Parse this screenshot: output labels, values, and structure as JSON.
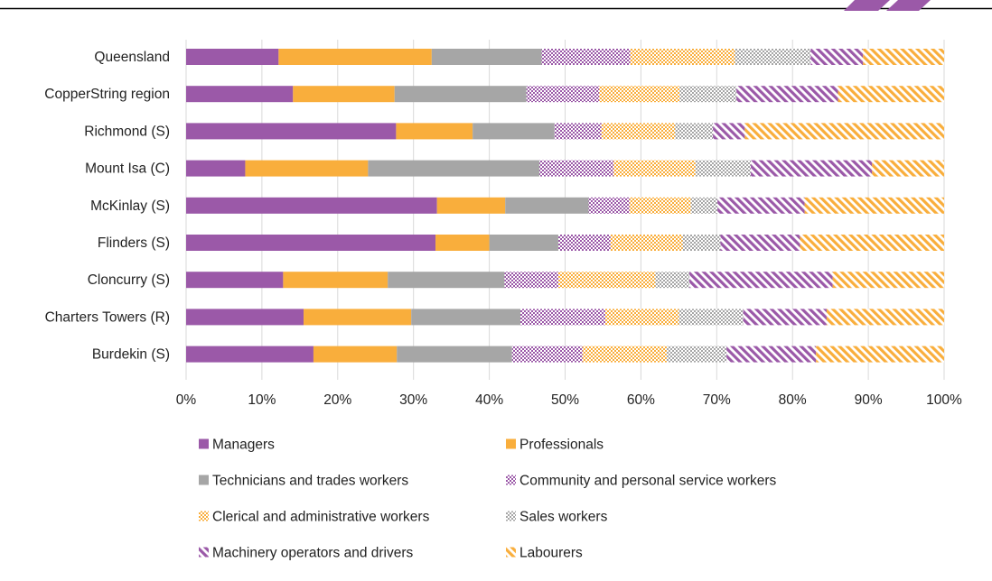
{
  "chart_data": {
    "type": "bar",
    "orientation": "horizontal",
    "stacked": "percent",
    "categories": [
      "Queensland",
      "CopperString region",
      "Richmond (S)",
      "Mount Isa (C)",
      "McKinlay (S)",
      "Flinders (S)",
      "Cloncurry (S)",
      "Charters Towers (R)",
      "Burdekin (S)"
    ],
    "xlim": [
      0,
      100
    ],
    "xticks": [
      "0%",
      "10%",
      "20%",
      "30%",
      "40%",
      "50%",
      "60%",
      "70%",
      "80%",
      "90%",
      "100%"
    ],
    "grid": "vertical",
    "legend_position": "bottom",
    "series": [
      {
        "name": "Managers",
        "color": "#9b59a8",
        "pattern": "solid",
        "values": [
          12.2,
          14.1,
          27.7,
          7.8,
          33.1,
          32.9,
          12.8,
          15.5,
          16.8
        ]
      },
      {
        "name": "Professionals",
        "color": "#f9ae3c",
        "pattern": "solid",
        "values": [
          20.2,
          13.4,
          10.1,
          16.2,
          9.0,
          7.1,
          13.8,
          14.2,
          11.0
        ]
      },
      {
        "name": "Technicians and trades workers",
        "color": "#a6a6a6",
        "pattern": "solid",
        "values": [
          14.5,
          17.4,
          10.8,
          22.6,
          11.0,
          9.1,
          15.4,
          14.4,
          15.2
        ]
      },
      {
        "name": "Community and personal service workers",
        "color": "#9b59a8",
        "pattern": "checker",
        "values": [
          11.7,
          9.6,
          6.2,
          9.8,
          5.4,
          6.9,
          7.1,
          11.2,
          9.3
        ]
      },
      {
        "name": "Clerical and administrative workers",
        "color": "#f9ae3c",
        "pattern": "checker",
        "values": [
          13.8,
          10.6,
          9.7,
          10.8,
          8.1,
          9.5,
          12.8,
          9.7,
          11.1
        ]
      },
      {
        "name": "Sales workers",
        "color": "#a6a6a6",
        "pattern": "checker",
        "values": [
          10.0,
          7.5,
          5.0,
          7.3,
          3.5,
          5.0,
          4.5,
          8.5,
          7.9
        ]
      },
      {
        "name": "Machinery operators and drivers",
        "color": "#9b59a8",
        "pattern": "diagonal",
        "values": [
          6.9,
          13.4,
          4.2,
          16.0,
          11.5,
          10.5,
          18.9,
          11.0,
          11.8
        ]
      },
      {
        "name": "Labourers",
        "color": "#f9ae3c",
        "pattern": "diagonal",
        "values": [
          10.7,
          14.0,
          26.3,
          9.5,
          18.4,
          19.0,
          14.7,
          15.5,
          16.9
        ]
      }
    ]
  }
}
